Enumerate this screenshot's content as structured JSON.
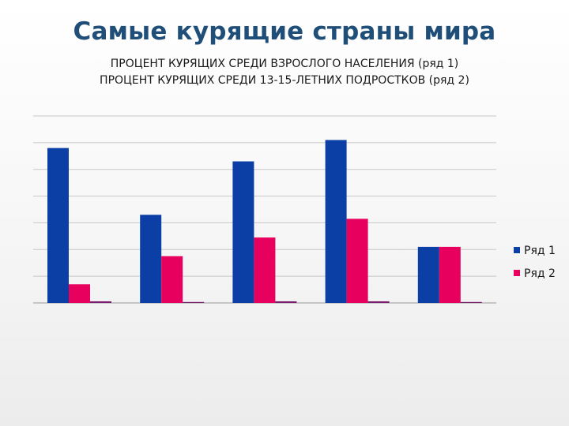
{
  "slide": {
    "title": "Самые курящие страны мира",
    "subtitle_line1": "ПРОЦЕНТ КУРЯЩИХ СРЕДИ ВЗРОСЛОГО НАСЕЛЕНИЯ   (ряд 1)",
    "subtitle_line2": "ПРОЦЕНТ КУРЯЩИХ СРЕДИ 13-15-ЛЕТНИХ ПОДРОСТКОВ   (ряд 2)"
  },
  "colors": {
    "series1": "#0b3fa6",
    "series2": "#e8005e",
    "series3": "#7a1d6e",
    "grid": "#c8c8c8",
    "axis": "#9a9a9a"
  },
  "chart_data": {
    "type": "bar",
    "categories": [
      "",
      "",
      "",
      "",
      ""
    ],
    "series": [
      {
        "name": "Ряд 1",
        "values": [
          58,
          33,
          53,
          61,
          21
        ]
      },
      {
        "name": "Ряд 2",
        "values": [
          7,
          17.5,
          24.5,
          31.5,
          21
        ]
      },
      {
        "values": [
          0.6,
          0.3,
          0.6,
          0.6,
          0.2
        ]
      }
    ],
    "ylim": [
      0,
      70
    ],
    "grid": true,
    "legend": "right"
  }
}
